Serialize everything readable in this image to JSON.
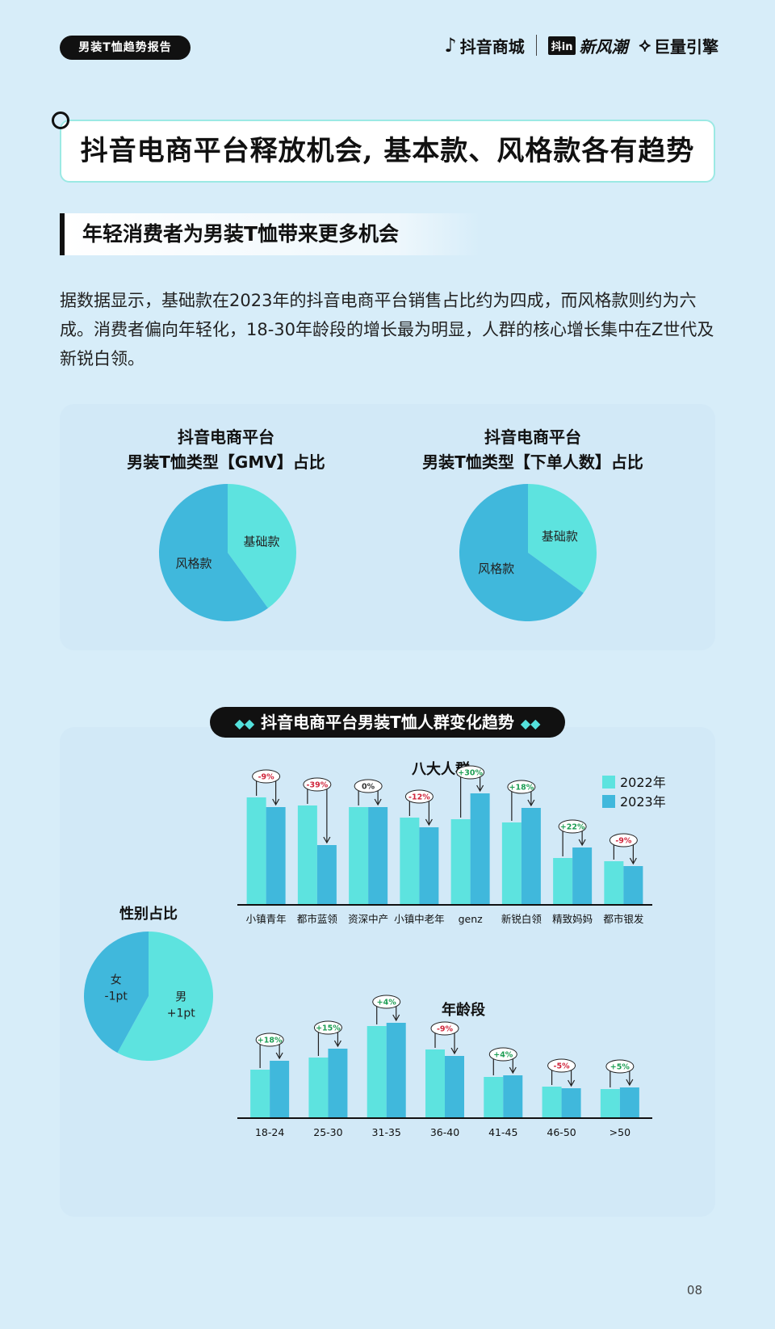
{
  "header": {
    "report_tag": "男装T恤趋势报告",
    "brand_douyin_mall": "抖音商城",
    "brand_douyin_badge": "抖in",
    "brand_xinfengchao": "新风潮",
    "brand_juliang": "巨量引擎"
  },
  "main_title": "抖音电商平台释放机会, 基本款、风格款各有趋势",
  "section_title": "年轻消费者为男装T恤带来更多机会",
  "paragraph": "据数据显示，基础款在2023年的抖音电商平台销售占比约为四成，而风格款则约为六成。消费者偏向年轻化，18-30年龄段的增长最为明显，人群的核心增长集中在Z世代及新锐白领。",
  "trend_pill": "抖音电商平台男装T恤人群变化趋势",
  "page_number": "08",
  "colors": {
    "light_cyan": "#5de3df",
    "blue": "#40b8dc",
    "positive": "#1e9e54",
    "negative": "#d0263c",
    "background": "#d7edf9"
  },
  "chart_data": [
    {
      "type": "pie",
      "title_line1": "抖音电商平台",
      "title_line2": "男装T恤类型【GMV】占比",
      "labels": [
        "基础款",
        "风格款"
      ],
      "values": [
        40,
        60
      ]
    },
    {
      "type": "pie",
      "title_line1": "抖音电商平台",
      "title_line2": "男装T恤类型【下单人数】占比",
      "labels": [
        "基础款",
        "风格款"
      ],
      "values": [
        35,
        65
      ]
    },
    {
      "type": "bar",
      "title": "八大人群",
      "categories": [
        "小镇青年",
        "都市蓝领",
        "资深中产",
        "小镇中老年",
        "genz",
        "新锐白领",
        "精致妈妈",
        "都市银发"
      ],
      "series": [
        {
          "name": "2022年",
          "values": [
            133,
            123,
            121,
            108,
            106,
            102,
            58,
            54
          ]
        },
        {
          "name": "2023年",
          "values": [
            121,
            74,
            121,
            96,
            138,
            120,
            71,
            48
          ]
        }
      ],
      "changes": [
        "-9%",
        "-39%",
        "0%",
        "-12%",
        "+30%",
        "+18%",
        "+22%",
        "-9%"
      ],
      "ylim": [
        0,
        150
      ]
    },
    {
      "type": "pie",
      "title": "性别占比",
      "labels": [
        "男",
        "女"
      ],
      "values": [
        58,
        42
      ],
      "changes": [
        "+1pt",
        "-1pt"
      ]
    },
    {
      "type": "bar",
      "title": "年龄段",
      "categories": [
        "18-24",
        "25-30",
        "31-35",
        "36-40",
        "41-45",
        "46-50",
        ">50"
      ],
      "series": [
        {
          "name": "2022年",
          "values": [
            60,
            75,
            114,
            85,
            51,
            39,
            36
          ]
        },
        {
          "name": "2023年",
          "values": [
            71,
            86,
            118,
            77,
            53,
            37,
            38
          ]
        }
      ],
      "changes": [
        "+18%",
        "+15%",
        "+4%",
        "-9%",
        "+4%",
        "-5%",
        "+5%"
      ],
      "ylim": [
        0,
        130
      ]
    }
  ]
}
